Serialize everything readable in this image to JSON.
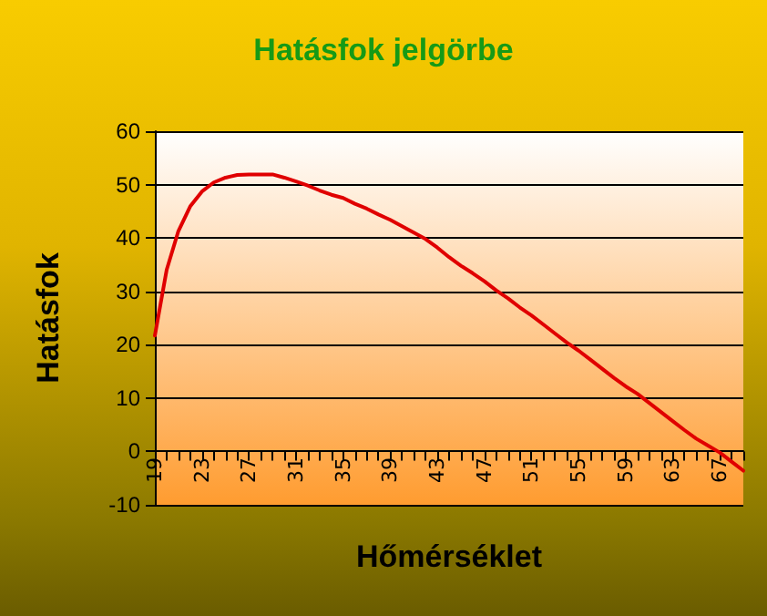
{
  "chart_data": {
    "type": "line",
    "title": "Hatásfok jelgörbe",
    "xlabel": "Hőmérséklet",
    "ylabel": "Hatásfok",
    "categories": [
      "19",
      null,
      null,
      null,
      "23",
      null,
      null,
      null,
      "27",
      null,
      null,
      null,
      "31",
      null,
      null,
      null,
      "35",
      null,
      null,
      null,
      "39",
      null,
      null,
      null,
      "43",
      null,
      null,
      null,
      "47",
      null,
      null,
      null,
      "51",
      null,
      null,
      null,
      "55",
      null,
      null,
      null,
      "59",
      null,
      null,
      null,
      "63",
      null,
      null,
      null,
      "67",
      null,
      null
    ],
    "series": [
      {
        "color": "#e00000",
        "values": [
          21.7,
          34,
          41.3,
          45.9,
          48.7,
          50.4,
          51.3,
          51.8,
          51.9,
          51.9,
          51.9,
          51.3,
          50.6,
          49.8,
          48.9,
          48.1,
          47.5,
          46.4,
          45.5,
          44.4,
          43.4,
          42.2,
          41,
          39.8,
          38.2,
          36.4,
          34.8,
          33.4,
          31.9,
          30.2,
          28.7,
          27,
          25.5,
          23.8,
          22.1,
          20.4,
          18.9,
          17.2,
          15.5,
          13.8,
          12.2,
          10.8,
          9.1,
          7.4,
          5.7,
          4,
          2.4,
          1.1,
          -0.2,
          -1.9,
          -3.6
        ]
      }
    ],
    "ylim": [
      -10,
      60
    ],
    "yticks": [
      -10,
      0,
      10,
      20,
      30,
      40,
      50,
      60
    ],
    "grid": "y",
    "marker": "none",
    "line_style": "solid"
  }
}
